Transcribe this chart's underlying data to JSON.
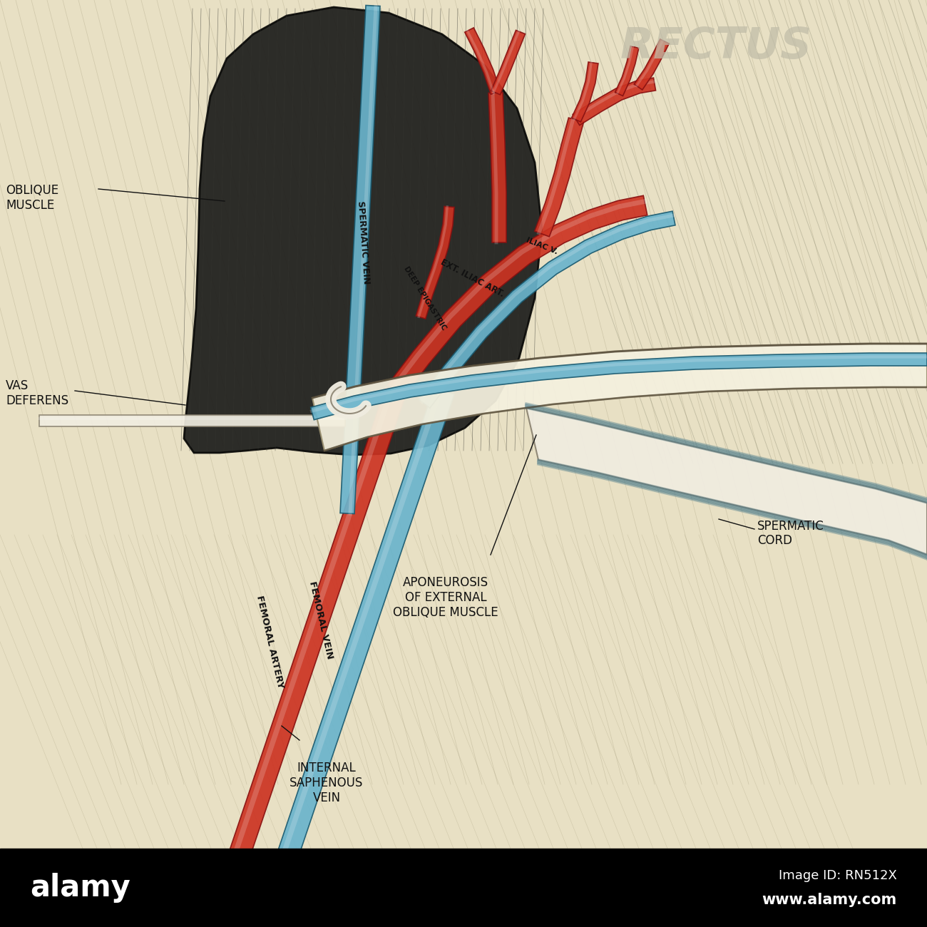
{
  "bg_color": "#e8e0c4",
  "black_bar_color": "#000000",
  "artery_color": "#cc3322",
  "artery_dark": "#881111",
  "vein_color": "#6ab4cc",
  "vein_dark": "#1a5a70",
  "muscle_dark": "#1e1e1c",
  "muscle_fiber": "#353530",
  "aponeurosis_face": "#f4f0de",
  "aponeurosis_edge": "#9a9070",
  "fiber_color": "#a09878",
  "fiber_color2": "#888870",
  "label_color": "#111111",
  "white_tube": "#f0ece0",
  "white_tube_edge": "#8a8270",
  "rectus_text_color": "#c0bca8",
  "rectus_label": "RECTUS",
  "oblique_label": "OBLIQUE\nMUSCLE",
  "vas_label": "VAS\nDEFERENS",
  "spermatic_cord_label": "SPERMATIC\nCORD",
  "aponeurosis_label": "APONEUROSIS\nOF EXTERNAL\nOBLIQUE MUSCLE",
  "internal_saphenous_label": "INTERNAL\nSAPHENOUS\nVEIN",
  "femoral_artery_label": "FEMORAL ARTERY",
  "femoral_vein_label": "FEMORAL VEIN",
  "spermatic_vein_label": "SPERMATIC VEIN",
  "alamy_text": "alamy",
  "image_id_text": "Image ID: RN512X",
  "alamy_url": "www.alamy.com"
}
